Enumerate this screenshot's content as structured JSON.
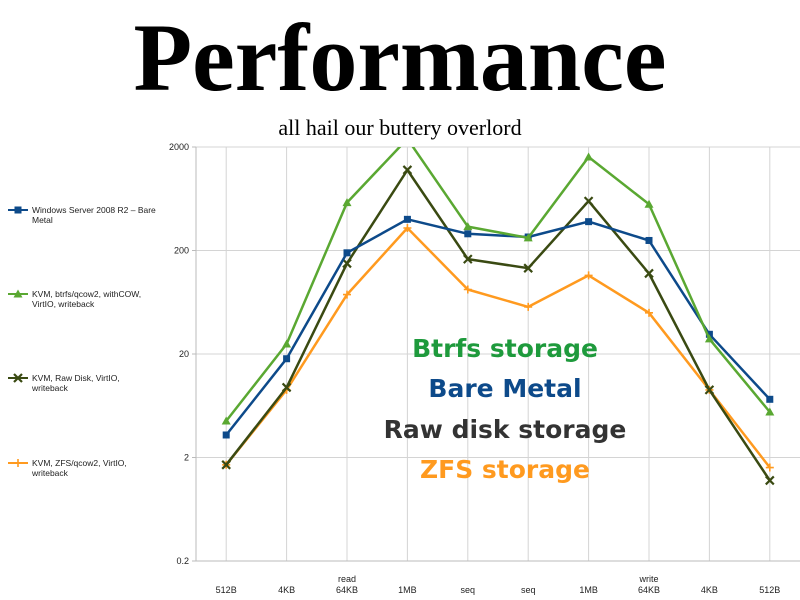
{
  "title": "Performance",
  "subtitle": "all hail our buttery overlord",
  "overlay_labels": [
    {
      "text": "Btrfs storage",
      "color": "#1e9a3c"
    },
    {
      "text": "Bare Metal",
      "color": "#0d4a8a"
    },
    {
      "text": "Raw disk storage",
      "color": "#333333"
    },
    {
      "text": "ZFS storage",
      "color": "#ff9a1f"
    }
  ],
  "chart_data": {
    "type": "line",
    "y_scale": "log",
    "ylim": [
      0.2,
      2000
    ],
    "y_ticks": [
      "2000",
      "200",
      "20",
      "2",
      "0.2"
    ],
    "y_tick_values": [
      2000,
      200,
      20,
      2,
      0.2
    ],
    "grid": true,
    "legend_position": "left",
    "categories": [
      [
        "512B"
      ],
      [
        "4KB"
      ],
      [
        "read",
        "64KB"
      ],
      [
        "1MB"
      ],
      [
        "seq"
      ],
      [
        "seq"
      ],
      [
        "1MB"
      ],
      [
        "write",
        "64KB"
      ],
      [
        "4KB"
      ],
      [
        "512B"
      ]
    ],
    "series": [
      {
        "name": "Windows Server 2008 R2 – Bare Metal",
        "color": "#0d4a8a",
        "marker": "square",
        "values": [
          3.3,
          18,
          190,
          400,
          290,
          270,
          380,
          250,
          31,
          7.3
        ]
      },
      {
        "name": "KVM, btrfs/qcow2, withCOW, VirtIO, writeback",
        "color": "#5aa832",
        "marker": "triangle",
        "values": [
          4.5,
          25,
          580,
          2400,
          340,
          265,
          1600,
          560,
          28,
          5.5
        ]
      },
      {
        "name": "KVM, Raw Disk, VirtIO, writeback",
        "color": "#3a4a12",
        "marker": "x",
        "values": [
          1.7,
          9.5,
          150,
          1200,
          165,
          135,
          600,
          120,
          9.0,
          1.2
        ]
      },
      {
        "name": "KVM, ZFS/qcow2, VirtIO, writeback",
        "color": "#ff9a1f",
        "marker": "plus",
        "values": [
          1.7,
          9.0,
          75,
          330,
          84,
          57,
          115,
          50,
          9.0,
          1.6
        ]
      }
    ]
  }
}
